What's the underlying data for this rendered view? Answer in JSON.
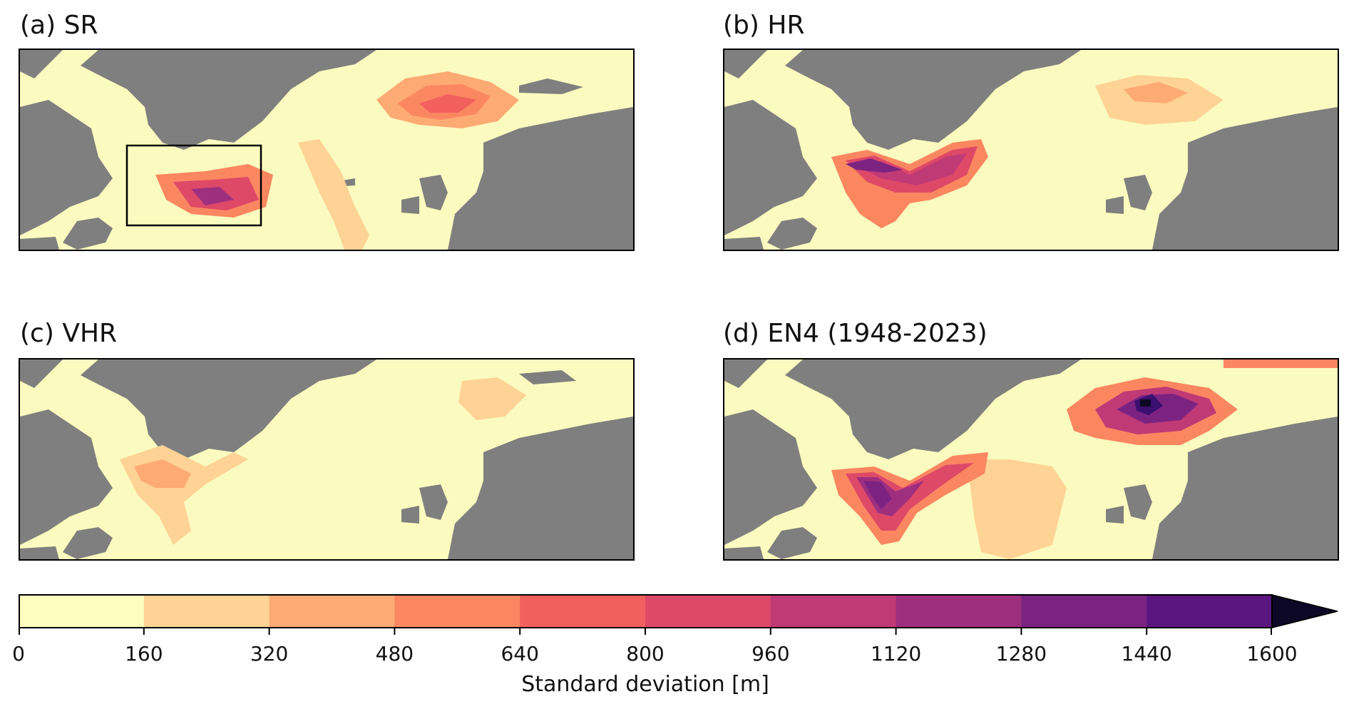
{
  "panels": [
    {
      "id": "a",
      "title": "(a) SR"
    },
    {
      "id": "b",
      "title": "(b) HR"
    },
    {
      "id": "c",
      "title": "(c) VHR"
    },
    {
      "id": "d",
      "title": "(d) EN4 (1948-2023)"
    }
  ],
  "colorbar": {
    "label": "Standard deviation [m]",
    "ticks": [
      "0",
      "160",
      "320",
      "480",
      "640",
      "800",
      "960",
      "1120",
      "1280",
      "1440",
      "1600"
    ],
    "colors": [
      "#fcfdbf",
      "#fed395",
      "#feaa74",
      "#fb8761",
      "#f1605d",
      "#de4968",
      "#c03a76",
      "#9e2f7f",
      "#7c2382",
      "#5c167f",
      "#3b0f70"
    ],
    "extend_color": "#0c0826",
    "extend": "max"
  },
  "colors": {
    "land": "#7f7f7f",
    "ocean_low": "#fcfdbf"
  }
}
